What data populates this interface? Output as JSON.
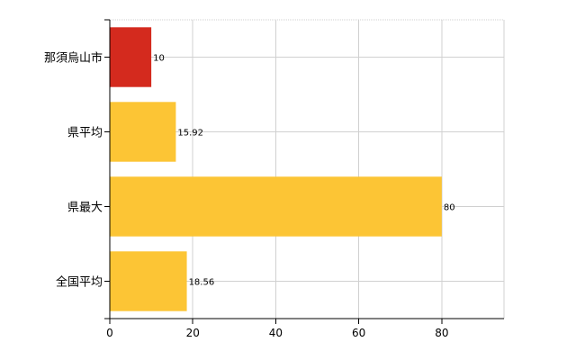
{
  "chart_data": {
    "type": "bar",
    "orientation": "horizontal",
    "categories": [
      "那須烏山市",
      "県平均",
      "県最大",
      "全国平均"
    ],
    "values": [
      10,
      15.92,
      80,
      18.56
    ],
    "value_labels": [
      "10",
      "15.92",
      "80",
      "18.56"
    ],
    "bar_colors": [
      "#d42a1e",
      "#fcc535",
      "#fcc535",
      "#fcc535"
    ],
    "xlim": [
      0,
      95
    ],
    "xticks": [
      0,
      20,
      40,
      60,
      80
    ],
    "grid": true,
    "title": "",
    "xlabel": "",
    "ylabel": ""
  }
}
